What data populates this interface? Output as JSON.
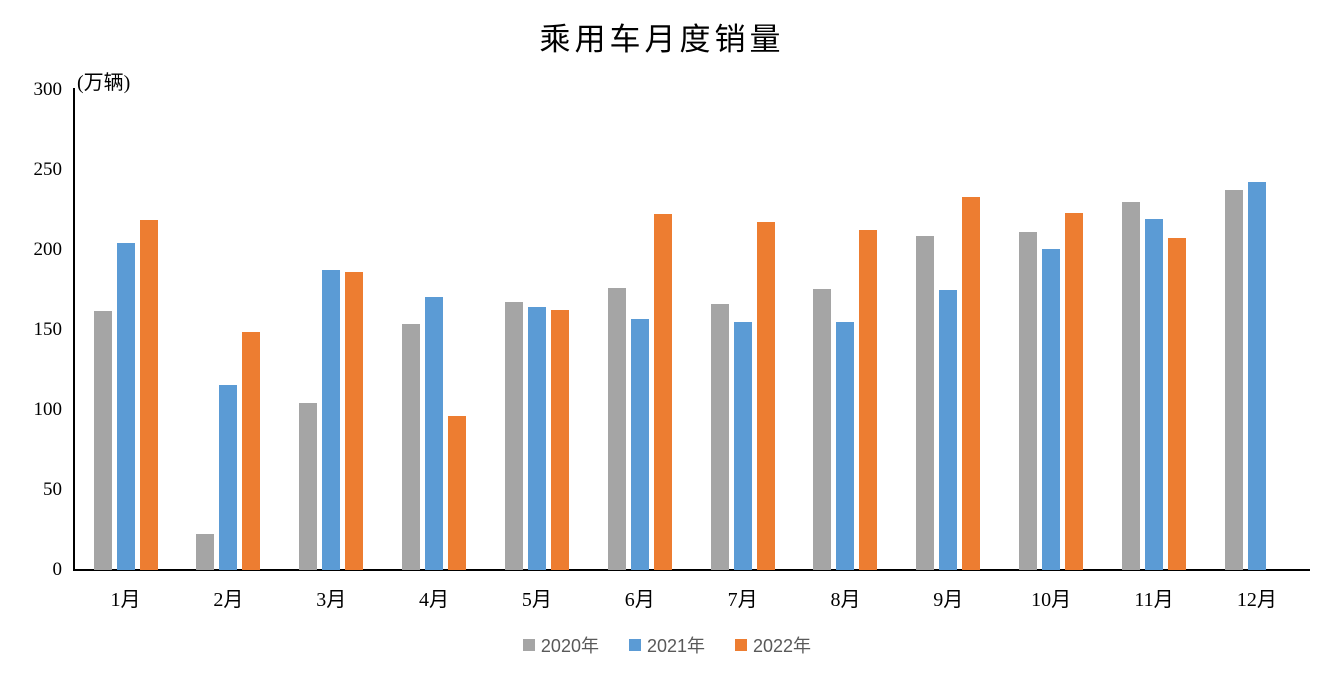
{
  "chart_data": {
    "type": "bar",
    "title": "乘用车月度销量",
    "ylabel": "(万辆)",
    "xlabel": "",
    "categories": [
      "1月",
      "2月",
      "3月",
      "4月",
      "5月",
      "6月",
      "7月",
      "8月",
      "9月",
      "10月",
      "11月",
      "12月"
    ],
    "series": [
      {
        "name": "2020年",
        "color": "#A5A5A5",
        "values": [
          161.6,
          22.4,
          104.3,
          153.6,
          167.4,
          176.4,
          166.5,
          175.5,
          208.8,
          211.0,
          229.7,
          237.5
        ]
      },
      {
        "name": "2021年",
        "color": "#5B9BD5",
        "values": [
          204.5,
          115.5,
          187.4,
          170.4,
          164.6,
          156.9,
          155.1,
          155.2,
          175.1,
          200.7,
          219.2,
          242.2
        ]
      },
      {
        "name": "2022年",
        "color": "#ED7D31",
        "values": [
          218.6,
          148.7,
          186.4,
          96.5,
          162.3,
          222.2,
          217.4,
          212.5,
          233.2,
          223.1,
          207.5,
          null
        ]
      }
    ],
    "ylim": [
      0,
      300
    ],
    "yticks": [
      0,
      50,
      100,
      150,
      200,
      250,
      300
    ],
    "grid": false,
    "legend_position": "bottom",
    "axis_color": "#000000",
    "tick_label_color": "#000000",
    "legend_text_color": "#595959",
    "background_color": "#FFFFFF"
  }
}
